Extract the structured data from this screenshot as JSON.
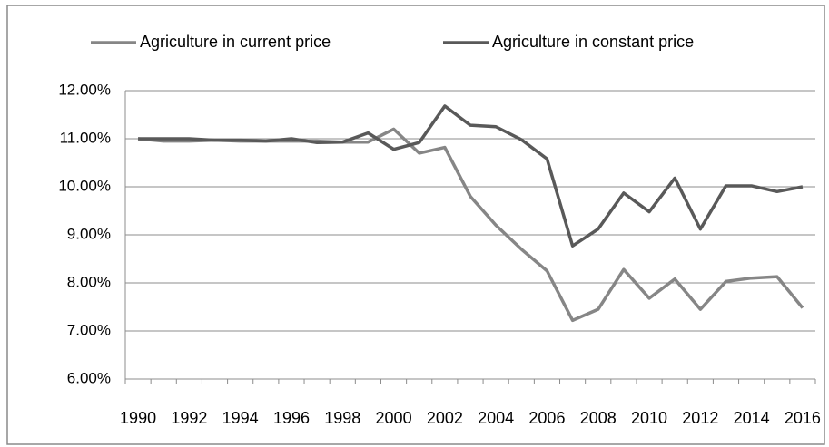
{
  "chart_data": {
    "type": "line",
    "categories": [
      "1990",
      null,
      "1992",
      null,
      "1994",
      null,
      "1996",
      null,
      "1998",
      null,
      "2000",
      null,
      "2002",
      null,
      "2004",
      null,
      "2006",
      null,
      "2008",
      null,
      "2010",
      null,
      "2012",
      null,
      "2014",
      null,
      "2016"
    ],
    "series": [
      {
        "name": "Agriculture in current price",
        "color": "#868686",
        "values": [
          11.0,
          10.95,
          10.95,
          10.97,
          10.95,
          10.95,
          10.95,
          10.95,
          10.93,
          10.93,
          11.2,
          10.7,
          10.82,
          9.8,
          9.2,
          8.7,
          8.25,
          7.22,
          7.45,
          8.28,
          7.68,
          8.08,
          7.45,
          8.03,
          8.1,
          8.13,
          7.48
        ]
      },
      {
        "name": "Agriculture in constant price",
        "color": "#595959",
        "values": [
          11.0,
          11.0,
          11.0,
          10.97,
          10.97,
          10.95,
          11.0,
          10.92,
          10.93,
          11.12,
          10.78,
          10.92,
          11.68,
          11.28,
          11.25,
          10.98,
          10.58,
          8.77,
          9.12,
          9.87,
          9.48,
          10.18,
          9.12,
          10.02,
          10.02,
          9.9,
          10.0
        ]
      }
    ],
    "ylim": [
      6,
      12
    ],
    "yticks": [
      {
        "value": 6,
        "label": "6.00%"
      },
      {
        "value": 7,
        "label": "7.00%"
      },
      {
        "value": 8,
        "label": "8.00%"
      },
      {
        "value": 9,
        "label": "9.00%"
      },
      {
        "value": 10,
        "label": "10.00%"
      },
      {
        "value": 11,
        "label": "11.00%"
      },
      {
        "value": 12,
        "label": "12.00%"
      }
    ],
    "grid": true,
    "legend": "top"
  }
}
